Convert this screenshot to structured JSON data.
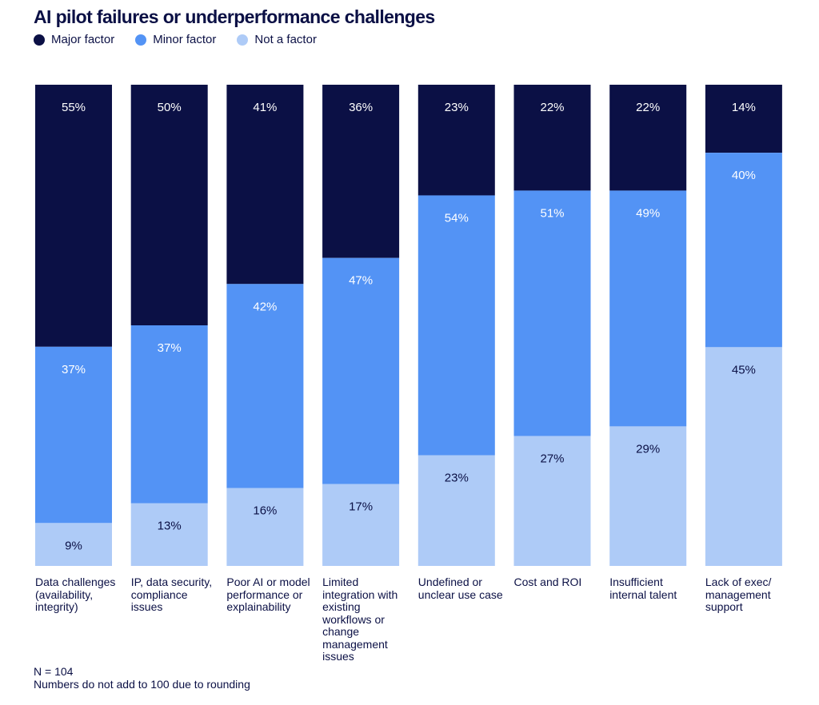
{
  "chart_data": {
    "type": "bar",
    "stacked": true,
    "title": "AI pilot failures or underperformance challenges",
    "categories": [
      "Data challenges (availability, integrity)",
      "IP, data security, compliance issues",
      "Poor AI or model performance or explainability",
      "Limited integration with existing workflows or change management issues",
      "Undefined or unclear use case",
      "Cost and ROI",
      "Insufficient internal talent",
      "Lack of exec/ management support"
    ],
    "series": [
      {
        "name": "Major factor",
        "color": "#0b1045",
        "label_color": "#ffffff",
        "values": [
          55,
          50,
          41,
          36,
          23,
          22,
          22,
          14
        ]
      },
      {
        "name": "Minor factor",
        "color": "#5393f5",
        "label_color": "#ffffff",
        "values": [
          37,
          37,
          42,
          47,
          54,
          51,
          49,
          40
        ]
      },
      {
        "name": "Not a factor",
        "color": "#aecbf7",
        "label_color": "#0b1045",
        "values": [
          9,
          13,
          16,
          17,
          23,
          27,
          29,
          45
        ]
      }
    ],
    "value_suffix": "%",
    "legend_position": "top-left",
    "grid": false,
    "xlabel": "",
    "ylabel": ""
  },
  "footnote": {
    "n": "N = 104",
    "note": "Numbers do not add to 100 due to rounding"
  }
}
